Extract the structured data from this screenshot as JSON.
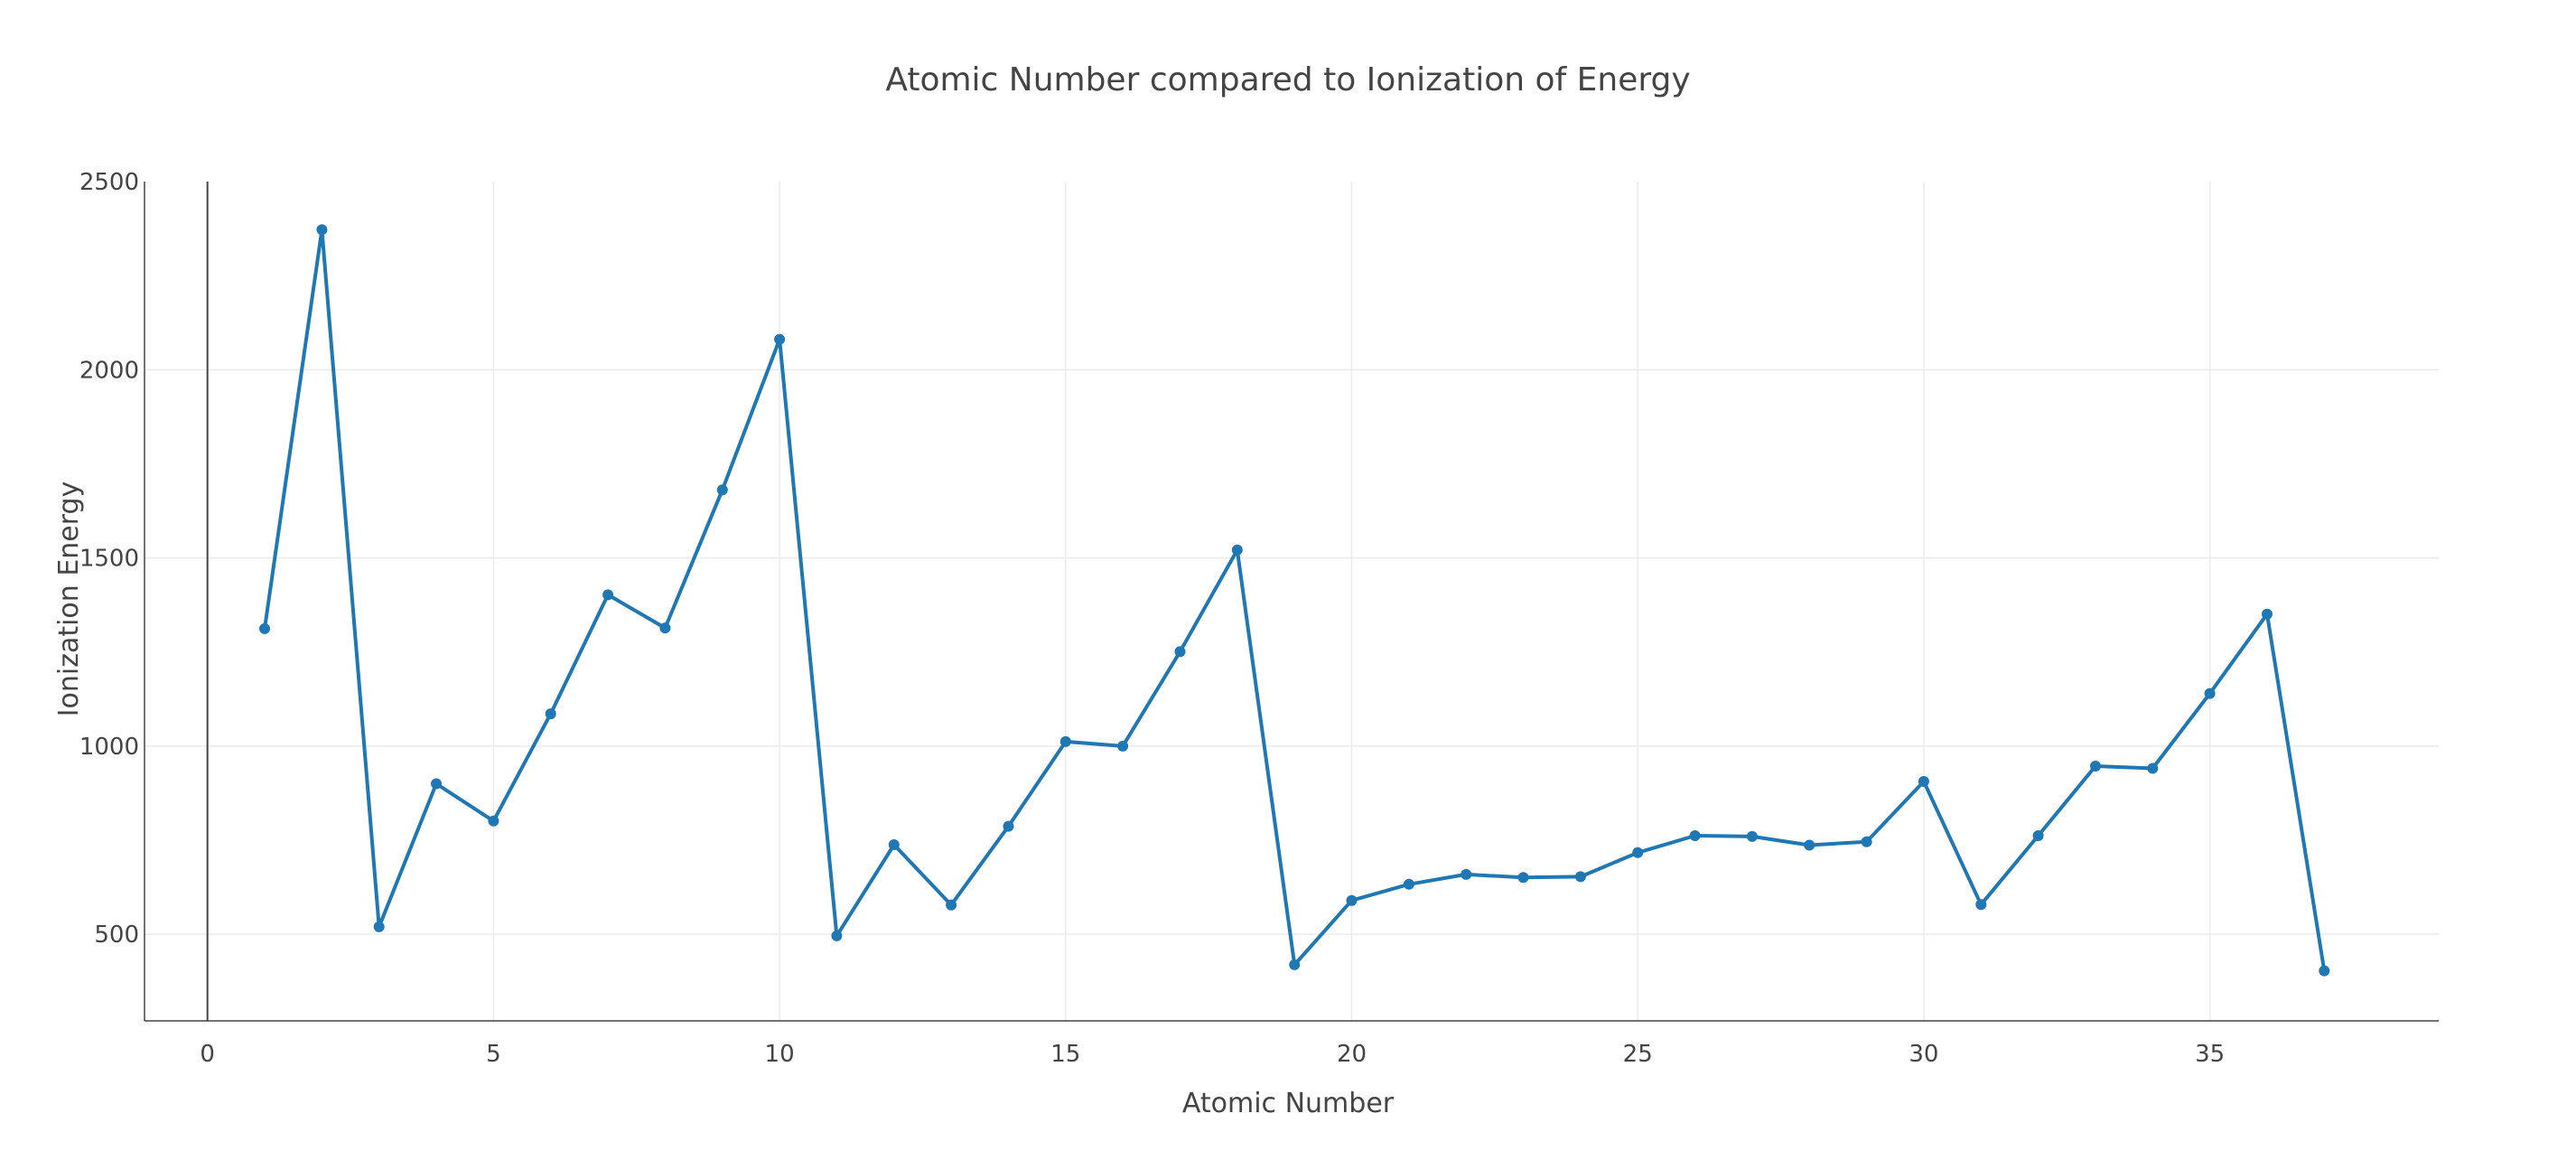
{
  "chart_data": {
    "type": "line",
    "title": "Atomic Number compared to Ionization of Energy",
    "xlabel": "Atomic Number",
    "ylabel": "Ionization Energy",
    "xlim": [
      -1.1,
      39
    ],
    "ylim": [
      270,
      2500
    ],
    "xticks": [
      0,
      5,
      10,
      15,
      20,
      25,
      30,
      35
    ],
    "yticks": [
      500,
      1000,
      1500,
      2000,
      2500
    ],
    "grid": true,
    "series_color": "#1f77b4",
    "series": [
      {
        "x": [
          1,
          2,
          3,
          4,
          5,
          6,
          7,
          8,
          9,
          10,
          11,
          12,
          13,
          14,
          15,
          16,
          17,
          18,
          19,
          20,
          21,
          22,
          23,
          24,
          25,
          26,
          27,
          28,
          29,
          30,
          31,
          32,
          33,
          34,
          35,
          36,
          37
        ],
        "values": [
          1312,
          2372,
          520,
          900,
          801,
          1086,
          1402,
          1314,
          1681,
          2081,
          496,
          738,
          578,
          787,
          1012,
          1000,
          1251,
          1521,
          419,
          590,
          633,
          659,
          651,
          653,
          717,
          762,
          760,
          737,
          746,
          906,
          579,
          762,
          947,
          941,
          1140,
          1351,
          403
        ]
      }
    ]
  }
}
